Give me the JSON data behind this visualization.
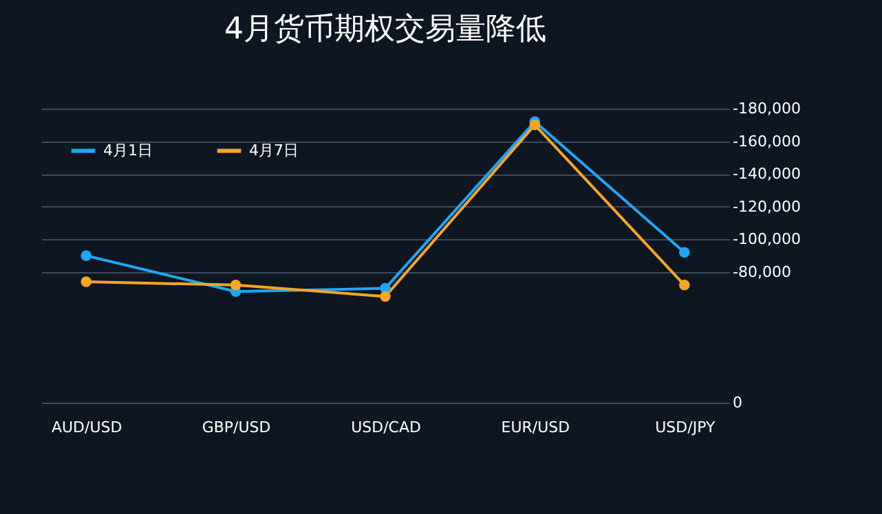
{
  "chart_data": {
    "type": "line",
    "title": "4月货币期权交易量降低",
    "categories": [
      "AUD/USD",
      "GBP/USD",
      "USD/CAD",
      "EUR/USD",
      "USD/JPY"
    ],
    "series": [
      {
        "name": "4月1日",
        "color": "#1ea7f5",
        "values": [
          -90000,
          -68000,
          -70000,
          -172000,
          -92000
        ]
      },
      {
        "name": "4月7日",
        "color": "#f5a623",
        "values": [
          -74000,
          -72000,
          -65000,
          -170000,
          -72000
        ]
      }
    ],
    "ylim": [
      0,
      -180000
    ],
    "yticks": [
      0,
      {
        "value": -80000,
        "label": "-80,000"
      },
      {
        "value": -100000,
        "label": "-100,000"
      },
      {
        "value": -120000,
        "label": "-120,000"
      },
      {
        "value": -140000,
        "label": "-140,000"
      },
      {
        "value": -160000,
        "label": "-160,000"
      },
      {
        "value": -180000,
        "label": "-180,000"
      }
    ],
    "grid": "y",
    "legend": "top left",
    "marker": "circle",
    "line_style": "solid"
  }
}
